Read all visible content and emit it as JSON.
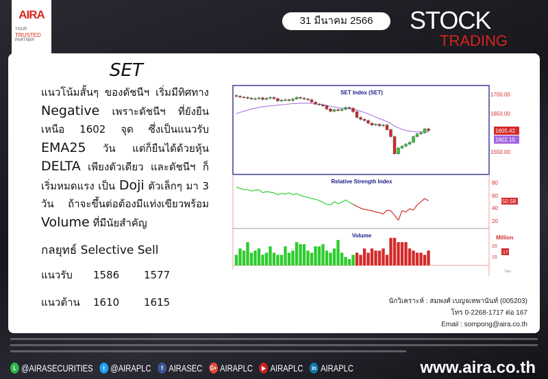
{
  "header": {
    "logo": "AIRA",
    "tagline": [
      "YOUR",
      "TRUSTED",
      "PARTNER"
    ],
    "date": "31 มีนาคม  2566",
    "stock": "STOCK",
    "trading": "TRADING"
  },
  "main": {
    "title": "SET",
    "paragraph": [
      {
        "t": "แนวโน้มสั้นๆ ของดัชนีฯ เริ่มมีทิศทาง ",
        "big": false
      },
      {
        "t": "Negative",
        "big": true
      },
      {
        "t": " เพราะดัชนีฯ ที่ยังยืนเหนือ 1602 จุด ซึ่งเป็นแนวรับ ",
        "big": false
      },
      {
        "t": "EMA25",
        "big": true
      },
      {
        "t": " วัน แต่ก็ยืนได้ด้วยหุ้น ",
        "big": false
      },
      {
        "t": "DELTA",
        "big": true
      },
      {
        "t": " เพียงตัวเดียว และดัชนีฯ ก็เริ่มหมดแรง เป็น ",
        "big": false
      },
      {
        "t": "Doji",
        "big": true
      },
      {
        "t": " ตัวเล็กๆ มา 3 วัน ถ้าจะขึ้นต่อต้องมีแท่งเขียวพร้อม ",
        "big": false
      },
      {
        "t": "Volume",
        "big": true
      },
      {
        "t": " ที่มีนัยสำคัญ",
        "big": false
      }
    ],
    "strategy": "กลยุทธ์ Selective Sell",
    "support": {
      "label": "แนวรับ",
      "v1": "1586",
      "v2": "1577"
    },
    "resistance": {
      "label": "แนวต้าน",
      "v1": "1610",
      "v2": "1615"
    }
  },
  "analyst": {
    "name": "นักวิเคราะห์ : สมพงศ์ เบญจเทพานันท์ (005203)",
    "phone": "โทร 0-2268-1717 ต่อ 167",
    "email": "Email : sompong@aira.co.th"
  },
  "footer": {
    "social": [
      {
        "icon": "line-icon",
        "color": "#2fb64a",
        "g": "L",
        "label": "@AIRASECURITIES"
      },
      {
        "icon": "twitter-icon",
        "color": "#1da1f2",
        "g": "t",
        "label": "@AIRAPLC"
      },
      {
        "icon": "facebook-icon",
        "color": "#3b5998",
        "g": "f",
        "label": "AIRASEC"
      },
      {
        "icon": "google-plus-icon",
        "color": "#dd4b39",
        "g": "G+",
        "label": "AIRAPLC"
      },
      {
        "icon": "youtube-icon",
        "color": "#cc2020",
        "g": "▶",
        "label": "AIRAPLC"
      },
      {
        "icon": "linkedin-icon",
        "color": "#0e76a8",
        "g": "in",
        "label": "AIRAPLC"
      }
    ],
    "website": "www.aira.co.th"
  },
  "chart_data": {
    "type": "candlestick",
    "price_title": "SET  Index  (SET)",
    "price_ticks": [
      "1700.00",
      "1650.00",
      "1550.00"
    ],
    "last_close": "1605.42",
    "ema_label": "1602.15",
    "closes": [
      1695,
      1693,
      1692,
      1690,
      1688,
      1689,
      1691,
      1687,
      1690,
      1692,
      1689,
      1683,
      1685,
      1686,
      1684,
      1688,
      1692,
      1690,
      1688,
      1686,
      1680,
      1675,
      1673,
      1670,
      1662,
      1656,
      1660,
      1658,
      1661,
      1666,
      1664,
      1655,
      1640,
      1635,
      1632,
      1625,
      1620,
      1622,
      1618,
      1620,
      1608,
      1590,
      1545,
      1560,
      1565,
      1570,
      1575,
      1590,
      1597,
      1600,
      1610,
      1605.42
    ],
    "ema": [
      1650,
      1653,
      1656,
      1659,
      1662,
      1664,
      1666,
      1668,
      1669,
      1670,
      1671,
      1672,
      1673,
      1674,
      1675,
      1676,
      1676,
      1677,
      1677,
      1677,
      1676,
      1675,
      1674,
      1673,
      1671,
      1669,
      1667,
      1665,
      1664,
      1664,
      1663,
      1661,
      1659,
      1656,
      1653,
      1649,
      1645,
      1641,
      1637,
      1633,
      1629,
      1624,
      1617,
      1613,
      1609,
      1606,
      1604,
      1603,
      1602,
      1602,
      1602,
      1602.15
    ],
    "rsi_title": "Relative  Strength  Index",
    "rsi_ticks": [
      "80",
      "60",
      "40",
      "20"
    ],
    "rsi_last": "50.58",
    "rsi": [
      72,
      70,
      68,
      68,
      66,
      67,
      68,
      63,
      65,
      64,
      63,
      60,
      62,
      61,
      63,
      60,
      62,
      59,
      57,
      56,
      54,
      53,
      51,
      48,
      45,
      44,
      49,
      46,
      48,
      52,
      48,
      45,
      42,
      39,
      37,
      36,
      35,
      33,
      32,
      30,
      36,
      35,
      28,
      20,
      35,
      33,
      38,
      36,
      44,
      49,
      54,
      50.58
    ],
    "volume_title": "Volume",
    "volume_unit": "Million",
    "volume_ticks": [
      "20",
      "15"
    ],
    "volume_last": "17",
    "volume": [
      15,
      18,
      17,
      21,
      16,
      17,
      18,
      15,
      16,
      19,
      16,
      15,
      15,
      19,
      16,
      17,
      21,
      20,
      20,
      17,
      16,
      19,
      19,
      20,
      17,
      16,
      18,
      22,
      16,
      14,
      13,
      15,
      16,
      15,
      18,
      16,
      18,
      17,
      17,
      18,
      15,
      23,
      23,
      21,
      21,
      21,
      18,
      17,
      16,
      16,
      15,
      17
    ],
    "volume_split": 32,
    "x_unit": "Day",
    "colors": {
      "up": "#2ecc2e",
      "down": "#d42a2a",
      "ema": "#a266e0",
      "frame": "#3a3a9a",
      "title": "#1a1a8a",
      "axis": "#d42a2a"
    }
  }
}
